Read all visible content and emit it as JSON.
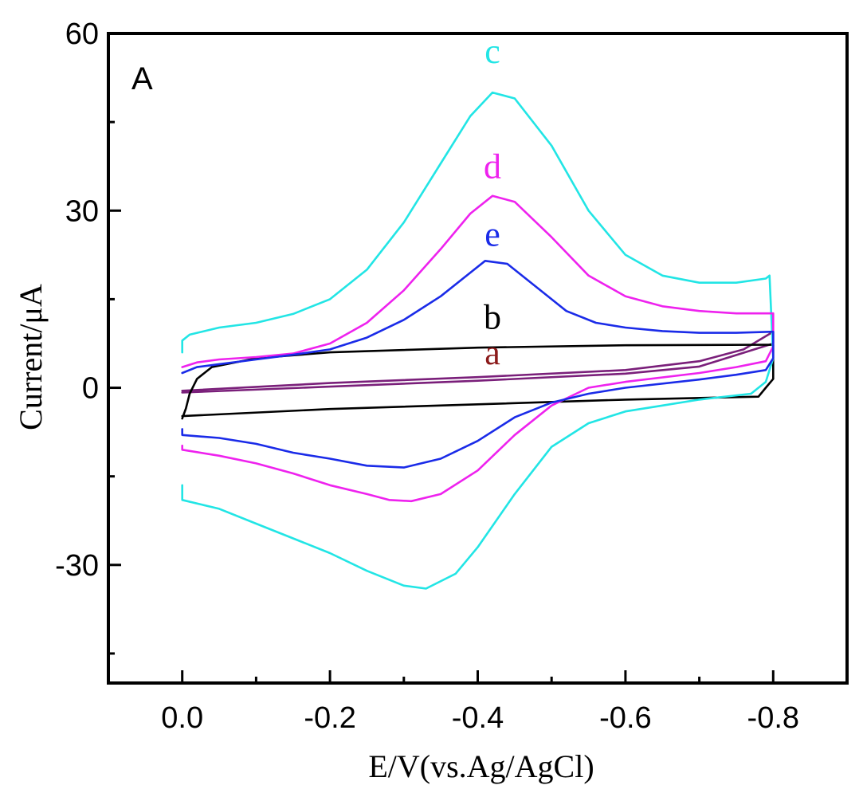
{
  "chart_data": {
    "type": "line",
    "panel_label": "A",
    "xlabel": "E/V(vs.Ag/AgCl)",
    "ylabel": "Current/μA",
    "xlim": [
      0.1,
      -0.9
    ],
    "ylim": [
      -50,
      60
    ],
    "x_ticks": [
      0.0,
      -0.2,
      -0.4,
      -0.6,
      -0.8
    ],
    "x_tick_labels": [
      "0.0",
      "-0.2",
      "-0.4",
      "-0.6",
      "-0.8"
    ],
    "y_ticks": [
      60,
      30,
      0,
      -30
    ],
    "y_tick_labels": [
      "60",
      "30",
      "0",
      "-30"
    ],
    "grid": false,
    "series": [
      {
        "name": "a",
        "color": "#7a1f7a",
        "label_color": "#8b1a1a",
        "label_at": [
          -0.42,
          4
        ],
        "forward": [
          [
            0.0,
            -0.5
          ],
          [
            -0.2,
            0.8
          ],
          [
            -0.4,
            1.8
          ],
          [
            -0.6,
            3.0
          ],
          [
            -0.7,
            4.5
          ],
          [
            -0.76,
            6.5
          ],
          [
            -0.8,
            9.5
          ]
        ],
        "reverse": [
          [
            -0.8,
            7.5
          ],
          [
            -0.7,
            3.6
          ],
          [
            -0.6,
            2.4
          ],
          [
            -0.4,
            1.2
          ],
          [
            -0.2,
            0.2
          ],
          [
            0.0,
            -0.8
          ]
        ]
      },
      {
        "name": "b",
        "color": "#000000",
        "label_color": "#000000",
        "label_at": [
          -0.42,
          10
        ],
        "forward": [
          [
            0.0,
            -5.2
          ],
          [
            -0.005,
            -3.5
          ],
          [
            -0.01,
            -1.0
          ],
          [
            -0.02,
            1.5
          ],
          [
            -0.04,
            3.5
          ],
          [
            -0.1,
            5.0
          ],
          [
            -0.2,
            6.0
          ],
          [
            -0.4,
            6.8
          ],
          [
            -0.6,
            7.2
          ],
          [
            -0.8,
            7.3
          ]
        ],
        "reverse": [
          [
            -0.8,
            1.5
          ],
          [
            -0.79,
            0.0
          ],
          [
            -0.78,
            -1.5
          ],
          [
            -0.6,
            -2.0
          ],
          [
            -0.4,
            -2.8
          ],
          [
            -0.2,
            -3.6
          ],
          [
            0.0,
            -4.8
          ]
        ]
      },
      {
        "name": "c",
        "color": "#22e5e5",
        "label_color": "#22e5e5",
        "label_at": [
          -0.42,
          55
        ],
        "forward": [
          [
            0.0,
            6.0
          ],
          [
            0.0,
            8.0
          ],
          [
            -0.01,
            9.0
          ],
          [
            -0.05,
            10.2
          ],
          [
            -0.1,
            11.0
          ],
          [
            -0.15,
            12.5
          ],
          [
            -0.2,
            15.0
          ],
          [
            -0.25,
            20.0
          ],
          [
            -0.3,
            28.0
          ],
          [
            -0.35,
            38.0
          ],
          [
            -0.39,
            46.0
          ],
          [
            -0.42,
            50.0
          ],
          [
            -0.45,
            49.0
          ],
          [
            -0.5,
            41.0
          ],
          [
            -0.55,
            30.0
          ],
          [
            -0.6,
            22.5
          ],
          [
            -0.65,
            19.0
          ],
          [
            -0.7,
            17.8
          ],
          [
            -0.75,
            17.8
          ],
          [
            -0.79,
            18.5
          ],
          [
            -0.795,
            19.0
          ]
        ],
        "reverse": [
          [
            -0.8,
            5.0
          ],
          [
            -0.79,
            1.0
          ],
          [
            -0.77,
            -1.0
          ],
          [
            -0.7,
            -2.0
          ],
          [
            -0.65,
            -3.0
          ],
          [
            -0.6,
            -4.0
          ],
          [
            -0.55,
            -6.0
          ],
          [
            -0.5,
            -10.0
          ],
          [
            -0.45,
            -18.0
          ],
          [
            -0.4,
            -27.0
          ],
          [
            -0.37,
            -31.5
          ],
          [
            -0.33,
            -34.0
          ],
          [
            -0.3,
            -33.5
          ],
          [
            -0.25,
            -31.0
          ],
          [
            -0.2,
            -28.0
          ],
          [
            -0.15,
            -25.5
          ],
          [
            -0.1,
            -23.0
          ],
          [
            -0.05,
            -20.5
          ],
          [
            0.0,
            -19.0
          ],
          [
            0.0,
            -16.5
          ]
        ]
      },
      {
        "name": "d",
        "color": "#ee22ee",
        "label_color": "#ee22ee",
        "label_at": [
          -0.42,
          35.5
        ],
        "forward": [
          [
            0.0,
            3.5
          ],
          [
            -0.02,
            4.3
          ],
          [
            -0.05,
            4.8
          ],
          [
            -0.1,
            5.2
          ],
          [
            -0.15,
            5.8
          ],
          [
            -0.2,
            7.5
          ],
          [
            -0.25,
            11.0
          ],
          [
            -0.3,
            16.5
          ],
          [
            -0.35,
            23.5
          ],
          [
            -0.39,
            29.5
          ],
          [
            -0.42,
            32.5
          ],
          [
            -0.45,
            31.5
          ],
          [
            -0.5,
            25.5
          ],
          [
            -0.55,
            19.0
          ],
          [
            -0.6,
            15.5
          ],
          [
            -0.65,
            13.8
          ],
          [
            -0.7,
            13.0
          ],
          [
            -0.75,
            12.6
          ],
          [
            -0.8,
            12.6
          ]
        ],
        "reverse": [
          [
            -0.8,
            7.0
          ],
          [
            -0.79,
            4.5
          ],
          [
            -0.75,
            3.5
          ],
          [
            -0.7,
            2.5
          ],
          [
            -0.6,
            1.0
          ],
          [
            -0.55,
            0.0
          ],
          [
            -0.5,
            -3.0
          ],
          [
            -0.45,
            -8.0
          ],
          [
            -0.4,
            -14.0
          ],
          [
            -0.35,
            -18.0
          ],
          [
            -0.31,
            -19.2
          ],
          [
            -0.28,
            -19.0
          ],
          [
            -0.25,
            -18.0
          ],
          [
            -0.2,
            -16.5
          ],
          [
            -0.15,
            -14.5
          ],
          [
            -0.1,
            -12.8
          ],
          [
            -0.05,
            -11.5
          ],
          [
            0.0,
            -10.5
          ],
          [
            0.0,
            -9.8
          ]
        ]
      },
      {
        "name": "e",
        "color": "#1a2be8",
        "label_color": "#1a2be8",
        "label_at": [
          -0.42,
          24
        ],
        "forward": [
          [
            0.0,
            2.5
          ],
          [
            -0.02,
            3.5
          ],
          [
            -0.05,
            4.0
          ],
          [
            -0.1,
            4.8
          ],
          [
            -0.15,
            5.6
          ],
          [
            -0.2,
            6.5
          ],
          [
            -0.25,
            8.5
          ],
          [
            -0.3,
            11.5
          ],
          [
            -0.35,
            15.5
          ],
          [
            -0.39,
            19.5
          ],
          [
            -0.41,
            21.5
          ],
          [
            -0.44,
            21.0
          ],
          [
            -0.48,
            17.0
          ],
          [
            -0.52,
            13.0
          ],
          [
            -0.56,
            11.0
          ],
          [
            -0.6,
            10.2
          ],
          [
            -0.65,
            9.6
          ],
          [
            -0.7,
            9.3
          ],
          [
            -0.75,
            9.3
          ],
          [
            -0.8,
            9.5
          ]
        ],
        "reverse": [
          [
            -0.8,
            5.0
          ],
          [
            -0.79,
            3.0
          ],
          [
            -0.75,
            2.2
          ],
          [
            -0.7,
            1.4
          ],
          [
            -0.6,
            0.0
          ],
          [
            -0.55,
            -1.0
          ],
          [
            -0.5,
            -2.5
          ],
          [
            -0.45,
            -5.0
          ],
          [
            -0.4,
            -9.0
          ],
          [
            -0.35,
            -12.0
          ],
          [
            -0.3,
            -13.5
          ],
          [
            -0.25,
            -13.2
          ],
          [
            -0.2,
            -12.0
          ],
          [
            -0.15,
            -11.0
          ],
          [
            -0.1,
            -9.5
          ],
          [
            -0.05,
            -8.5
          ],
          [
            0.0,
            -8.0
          ],
          [
            0.0,
            -7.0
          ]
        ]
      }
    ]
  }
}
